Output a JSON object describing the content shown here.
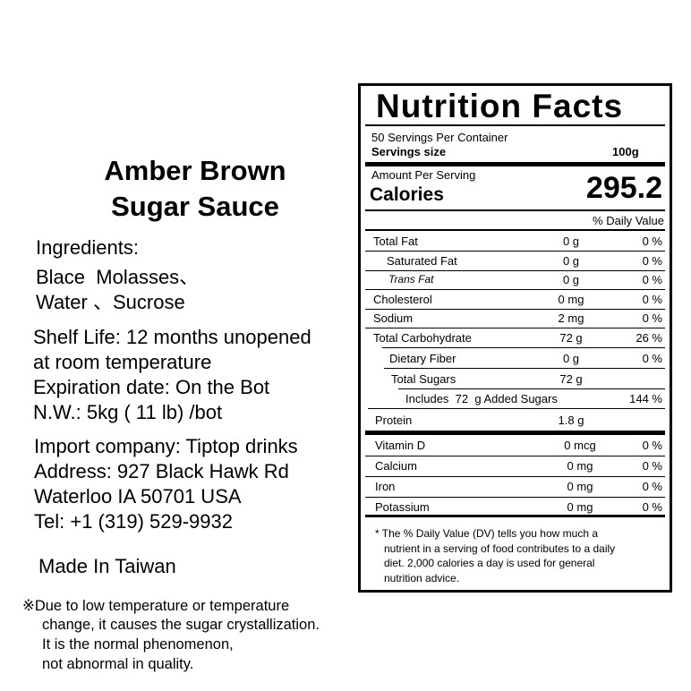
{
  "product": {
    "title": [
      "Amber Brown",
      "Sugar Sauce"
    ],
    "ingredients": [
      "Ingredients:",
      "Blace  Molasses、",
      "Water 、Sucrose"
    ],
    "details": [
      "Shelf Life: 12 months unopened",
      "at room temperature",
      "Expiration date: On the Bot",
      "N.W.: 5kg ( 11 lb) /bot"
    ],
    "importer": [
      "Import company: Tiptop drinks",
      "Address: 927 Black Hawk Rd",
      "Waterloo IA 50701 USA",
      "Tel: +1 (319) 529-9932"
    ],
    "origin": "Made In Taiwan",
    "note": [
      "※Due to low temperature or temperature",
      "change, it causes the sugar crystallization.",
      "It is the normal phenomenon,",
      "not abnormal in quality."
    ]
  },
  "nutrition": {
    "title": "Nutrition Facts",
    "servings_per_container": "50 Servings Per Container",
    "serving_size_label": "Servings size",
    "serving_size": "100g",
    "amount_per_serving": "Amount Per Serving",
    "calories_label": "Calories",
    "calories": "295.2",
    "daily_value_header": "% Daily Value",
    "rows": [
      {
        "name": "Total Fat",
        "amount": "0 g",
        "dv": "0 %"
      },
      {
        "name": "Saturated Fat",
        "amount": "0 g",
        "dv": "0 %"
      },
      {
        "name": "Trans Fat",
        "amount": "0 g",
        "dv": "0 %"
      },
      {
        "name": "Cholesterol",
        "amount": "0 mg",
        "dv": "0 %"
      },
      {
        "name": "Sodium",
        "amount": "2 mg",
        "dv": "0 %"
      },
      {
        "name": "Total Carbohydrate",
        "amount": "72 g",
        "dv": "26 %"
      },
      {
        "name": "Dietary Fiber",
        "amount": "0 g",
        "dv": "0 %"
      },
      {
        "name": "Total Sugars",
        "amount": "72 g"
      },
      {
        "name": "Includes  72  g Added Sugars",
        "dv": "144 %"
      },
      {
        "name": "Protein",
        "amount": "1.8 g"
      }
    ],
    "vitamins": [
      {
        "name": "Vitamin D",
        "amount": "0 mcg",
        "dv": "0 %"
      },
      {
        "name": "Calcium",
        "amount": "0 mg",
        "dv": "0 %"
      },
      {
        "name": "Iron",
        "amount": "0 mg",
        "dv": "0 %"
      },
      {
        "name": "Potassium",
        "amount": "0 mg",
        "dv": "0 %"
      }
    ],
    "footnote": [
      "* The % Daily Value (DV) tells you how much a",
      "nutrient in a serving of food contributes to a daily",
      "diet. 2,000 calories a day is used for general",
      "nutrition advice."
    ]
  }
}
